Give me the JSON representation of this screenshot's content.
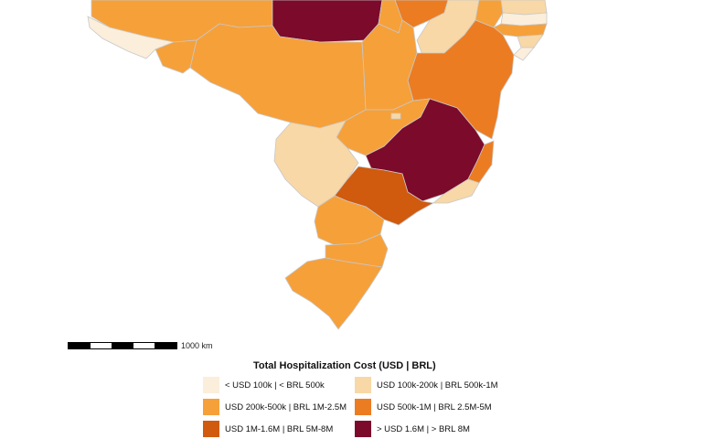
{
  "legend": {
    "title": "Total Hospitalization Cost (USD | BRL)",
    "items": [
      {
        "label": "< USD 100k | < BRL 500k",
        "color": "#fbeedb"
      },
      {
        "label": "USD 100k-200k | BRL 500k-1M",
        "color": "#f8d8a6"
      },
      {
        "label": "USD 200k-500k | BRL 1M-2.5M",
        "color": "#f6a03a"
      },
      {
        "label": "USD 500k-1M | BRL 2.5M-5M",
        "color": "#ec7c22"
      },
      {
        "label": "USD 1M-1.6M | BRL 5M-8M",
        "color": "#d05a0e"
      },
      {
        "label": "> USD 1.6M | > BRL 8M",
        "color": "#7c0a2a"
      }
    ]
  },
  "scale_bar": {
    "label": "1000 km"
  },
  "colors": {
    "c1": "#fbeedb",
    "c2": "#f8d8a6",
    "c3": "#f6a03a",
    "c4": "#ec7c22",
    "c5": "#d05a0e",
    "c6": "#7c0a2a"
  }
}
